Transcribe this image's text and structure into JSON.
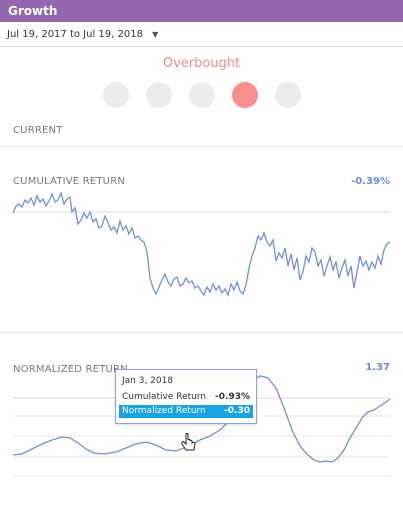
{
  "header": {
    "title": "Growth"
  },
  "date_range": {
    "label": "Jul 19, 2017 to Jul 19, 2018",
    "caret_icon": "caret-down-icon"
  },
  "signal": {
    "label": "Overbought",
    "active_index": 3,
    "indicator_count": 5,
    "colors": {
      "active": "#fb8e8e",
      "inactive": "#ececec",
      "label": "#f08a8a"
    }
  },
  "sections": {
    "current": {
      "label": "CURRENT"
    },
    "cumulative": {
      "label": "CUMULATIVE RETURN",
      "value": "-0.39%"
    },
    "normalized": {
      "label": "NORMALIZED RETURN",
      "value": "1.37"
    }
  },
  "tooltip": {
    "date": "Jan 3, 2018",
    "rows": [
      {
        "label": "Cumulative Return",
        "value": "-0.93%"
      },
      {
        "label": "Normalized Return",
        "value": "-0.30"
      }
    ]
  },
  "colors": {
    "header": "#9366b0",
    "line": "#7191cf",
    "value": "#6e8cc8",
    "highlight": "#1aa3e0"
  }
}
